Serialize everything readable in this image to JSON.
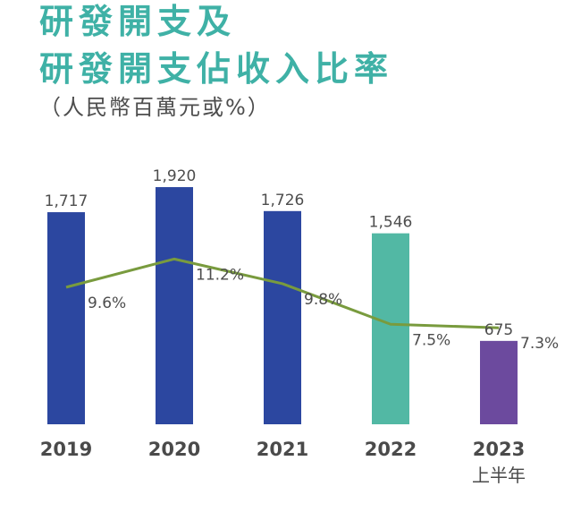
{
  "title_line1": "研發開支及",
  "title_line2": "研發開支佔收入比率",
  "subtitle": "（人民幣百萬元或%）",
  "chart_data": {
    "type": "bar",
    "categories": [
      "2019",
      "2020",
      "2021",
      "2022",
      "2023"
    ],
    "category_sublabels": [
      "",
      "",
      "",
      "",
      "上半年"
    ],
    "series": [
      {
        "name": "研發開支",
        "values": [
          1717,
          1920,
          1726,
          1546,
          675
        ],
        "value_labels": [
          "1,717",
          "1,920",
          "1,726",
          "1,546",
          "675"
        ],
        "colors": [
          "#2c47a0",
          "#2c47a0",
          "#2c47a0",
          "#52b8a4",
          "#6c4a9e"
        ]
      },
      {
        "name": "研發開支佔收入比率",
        "kind": "line",
        "values": [
          9.6,
          11.2,
          9.8,
          7.5,
          7.3
        ],
        "value_labels": [
          "9.6%",
          "11.2%",
          "9.8%",
          "7.5%",
          "7.3%"
        ],
        "color": "#799b3e"
      }
    ],
    "title": "研發開支及研發開支佔收入比率",
    "ylabel": "人民幣百萬元或%",
    "ylim": [
      0,
      2000
    ],
    "ylim_line": [
      0,
      12
    ],
    "grid": false,
    "legend": "none"
  }
}
